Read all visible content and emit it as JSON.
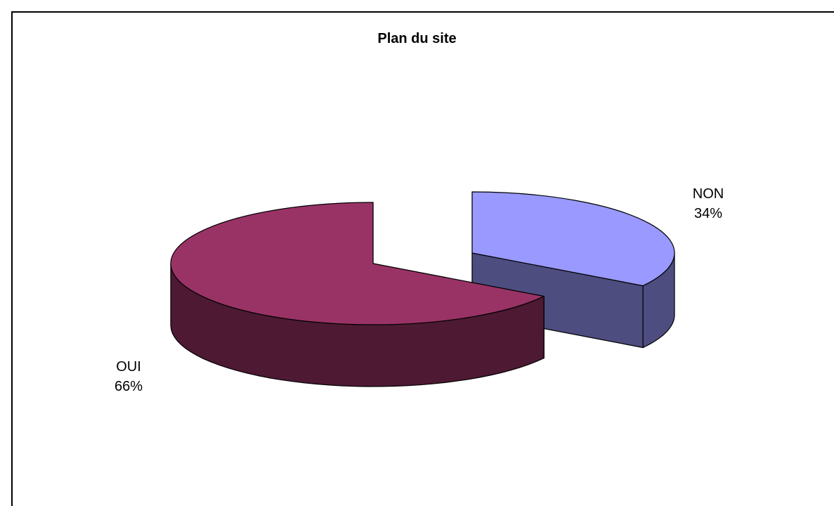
{
  "chart_data": {
    "type": "pie",
    "title": "Plan du site",
    "categories": [
      "OUI",
      "NON"
    ],
    "values": [
      66,
      34
    ],
    "labels": [
      "66%",
      "34%"
    ],
    "colors": [
      "#993366",
      "#9999ff"
    ],
    "side_colors": [
      "#4d1933",
      "#4d4d80"
    ],
    "legend": "none",
    "style": "3d-exploded"
  }
}
